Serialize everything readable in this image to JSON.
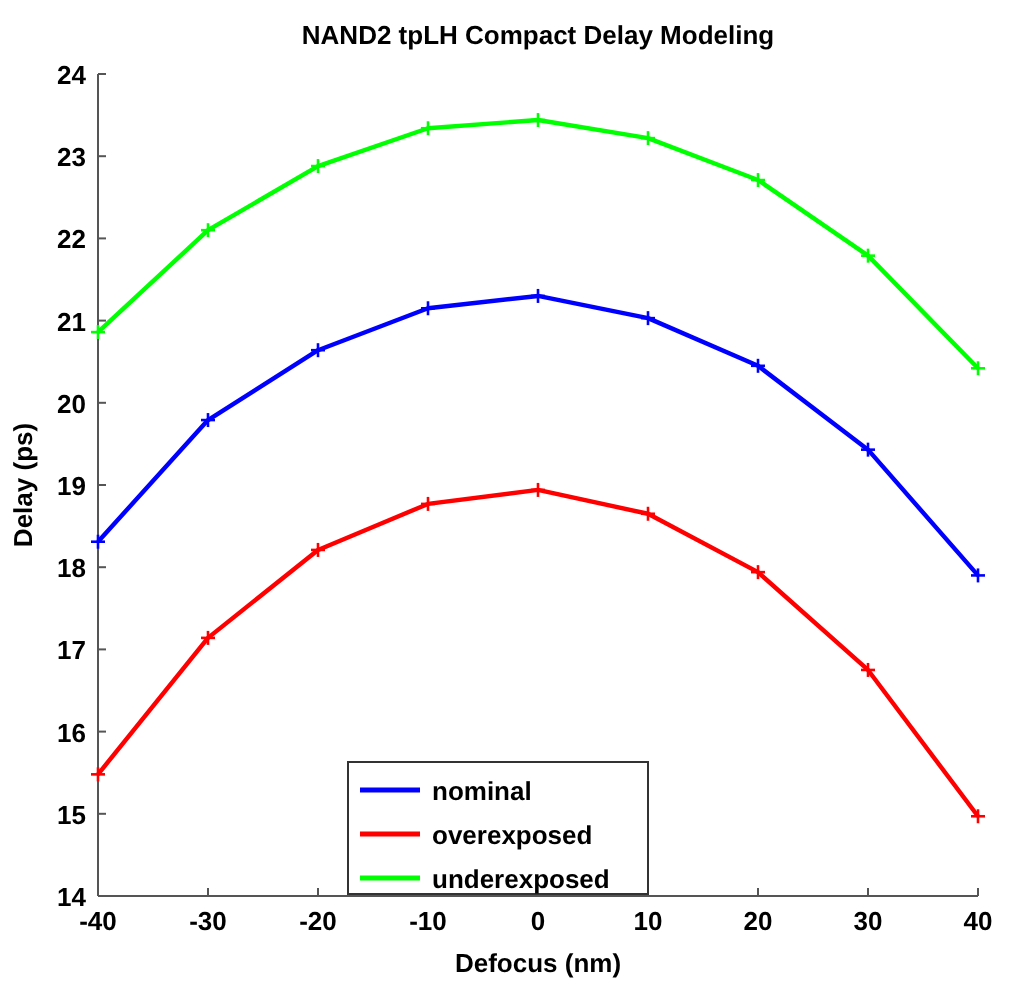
{
  "chart_data": {
    "type": "line",
    "title": "NAND2 tpLH Compact Delay Modeling",
    "xlabel": "Defocus (nm)",
    "ylabel": "Delay (ps)",
    "x": [
      -40,
      -30,
      -20,
      -10,
      0,
      10,
      20,
      30,
      40
    ],
    "series": [
      {
        "name": "nominal",
        "color": "#0000ff",
        "values": [
          18.31,
          19.79,
          20.64,
          21.15,
          21.3,
          21.03,
          20.45,
          19.43,
          17.9
        ]
      },
      {
        "name": "overexposed",
        "color": "#ff0000",
        "values": [
          15.48,
          17.14,
          18.21,
          18.77,
          18.94,
          18.65,
          17.94,
          16.75,
          14.97
        ]
      },
      {
        "name": "underexposed",
        "color": "#00ff00",
        "values": [
          20.86,
          22.1,
          22.88,
          23.34,
          23.44,
          23.22,
          22.71,
          21.79,
          20.42
        ]
      }
    ],
    "xlim": [
      -40,
      40
    ],
    "xticks": [
      -40,
      -30,
      -20,
      -10,
      0,
      10,
      20,
      30,
      40
    ],
    "ylim": [
      14,
      24
    ],
    "yticks": [
      14,
      15,
      16,
      17,
      18,
      19,
      20,
      21,
      22,
      23,
      24
    ],
    "legend": "bottom",
    "marker": "cross",
    "line_style": "solid",
    "grid": false
  }
}
